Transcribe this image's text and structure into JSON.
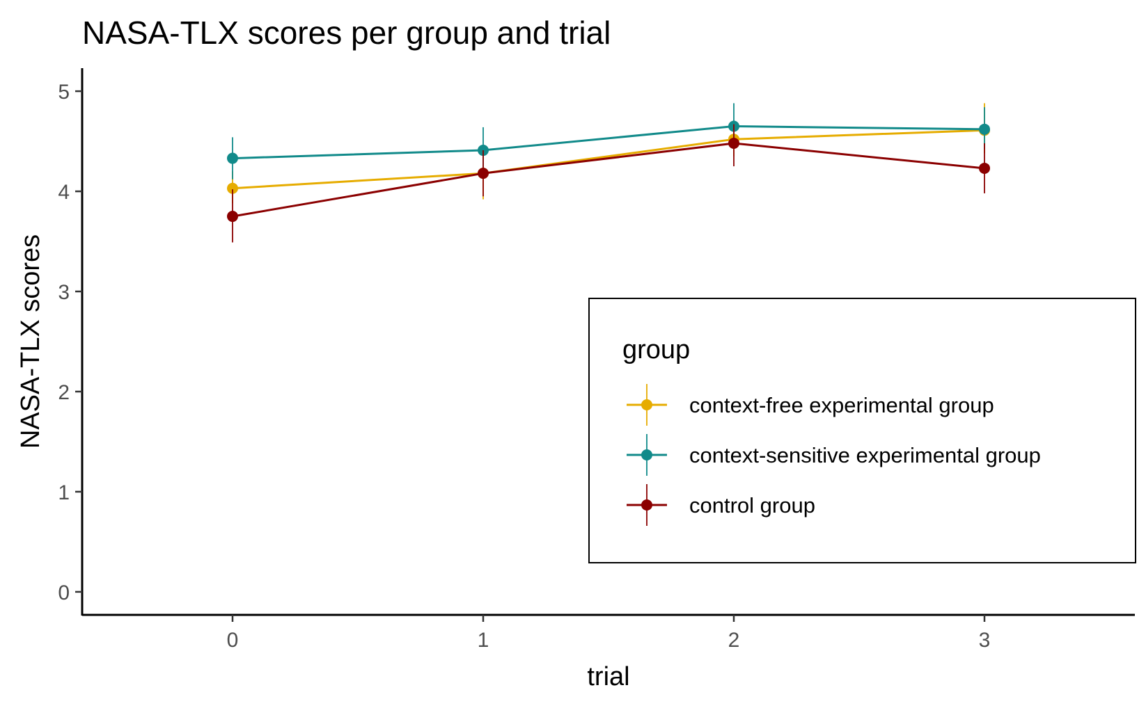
{
  "chart_data": {
    "type": "line",
    "title": "NASA-TLX scores per group and trial",
    "xlabel": "trial",
    "ylabel": "NASA-TLX scores",
    "x": [
      0,
      1,
      2,
      3
    ],
    "x_tick_labels": [
      "0",
      "1",
      "2",
      "3"
    ],
    "xlim": [
      -0.6,
      3.6
    ],
    "ylim": [
      -0.23,
      5.23
    ],
    "y_ticks": [
      0,
      1,
      2,
      3,
      4,
      5
    ],
    "y_tick_labels": [
      "0",
      "1",
      "2",
      "3",
      "4",
      "5"
    ],
    "grid": false,
    "error_bars": true,
    "legend": {
      "title": "group",
      "placement": "bottom-right, inside plot"
    },
    "series": [
      {
        "name": "context-free experimental group",
        "color": "#E6AC00",
        "values": [
          4.03,
          4.18,
          4.52,
          4.61
        ],
        "error_low": [
          3.88,
          3.92,
          4.35,
          4.38
        ],
        "error_high": [
          4.2,
          4.38,
          4.67,
          4.88
        ]
      },
      {
        "name": "context-sensitive experimental group",
        "color": "#118A8A",
        "values": [
          4.33,
          4.41,
          4.65,
          4.62
        ],
        "error_low": [
          4.12,
          4.18,
          4.45,
          4.42
        ],
        "error_high": [
          4.54,
          4.64,
          4.88,
          4.84
        ]
      },
      {
        "name": "control group",
        "color": "#8B0000",
        "values": [
          3.75,
          4.18,
          4.48,
          4.23
        ],
        "error_low": [
          3.49,
          3.95,
          4.25,
          3.98
        ],
        "error_high": [
          4.02,
          4.41,
          4.67,
          4.48
        ]
      }
    ]
  }
}
